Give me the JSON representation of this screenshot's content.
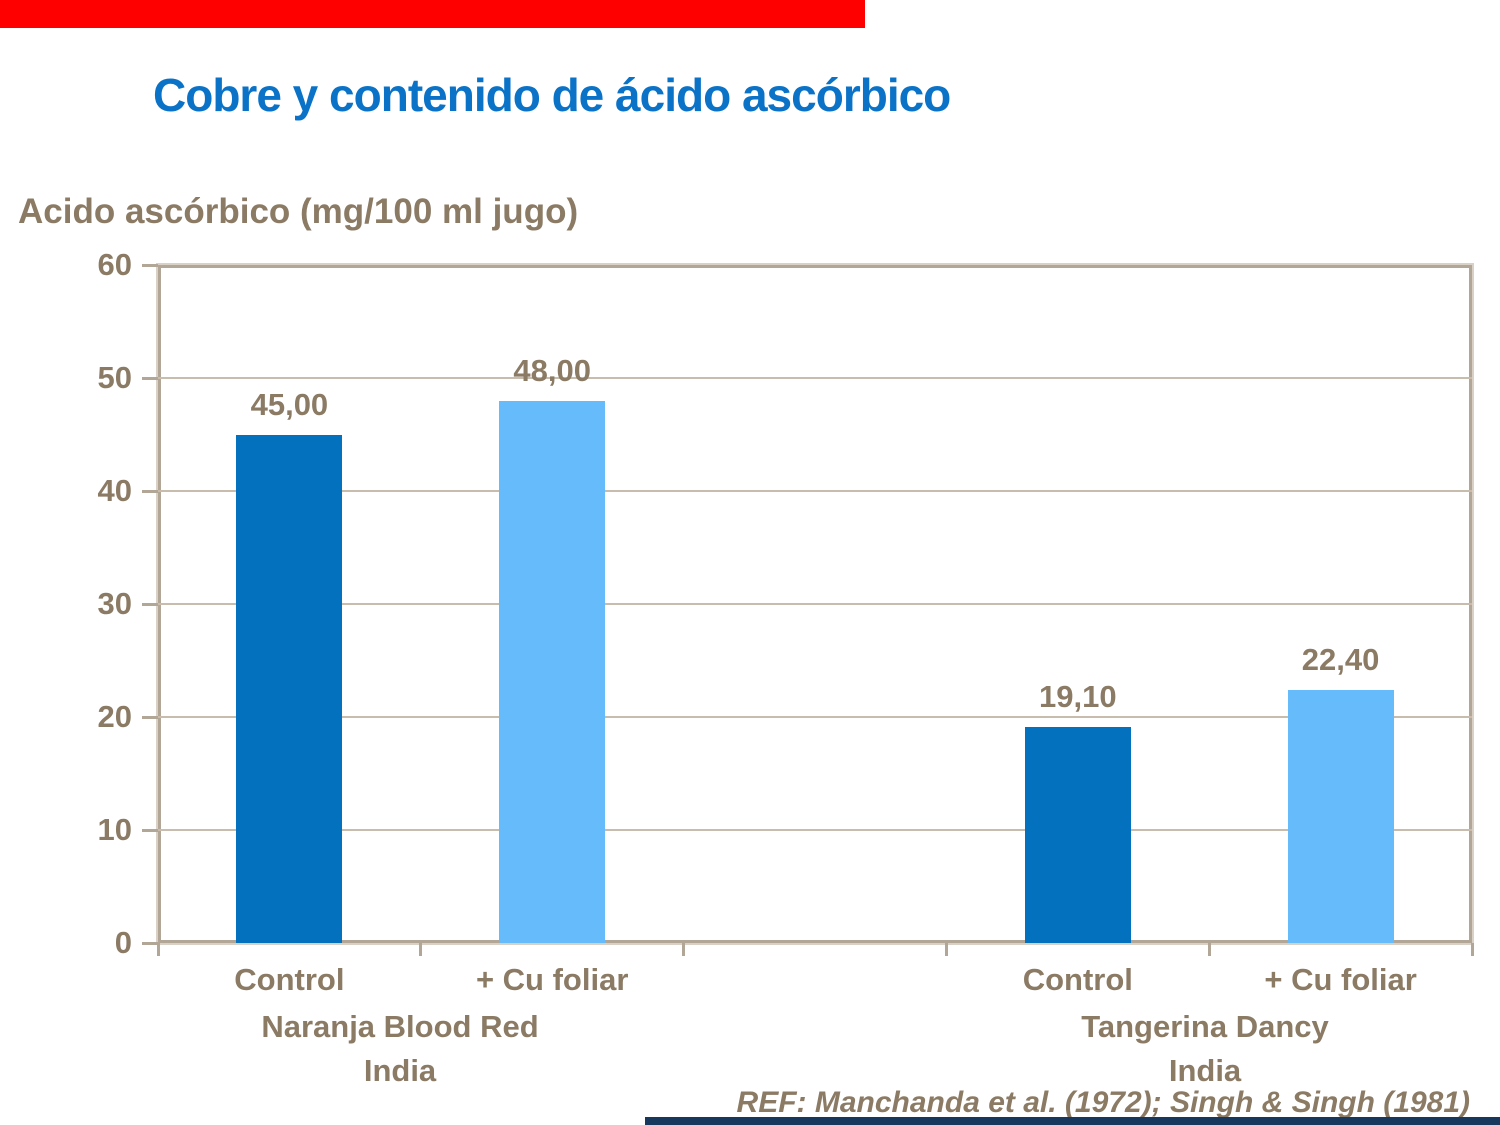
{
  "slide": {
    "title": "Cobre y contenido de ácido ascórbico",
    "reference": "REF: Manchanda et al. (1972); Singh & Singh (1981)"
  },
  "colors": {
    "title_blue": "#0B73C7",
    "text_brown": "#8B7A64",
    "dark_blue_bar": "#0471BE",
    "light_blue_bar": "#66BBFB",
    "gridline_tan": "#C8BCAD",
    "frame_tan": "#B2A697",
    "frame_highlight": "#D9D1C5",
    "top_accent_red": "#FE0000",
    "bottom_accent_navy": "#17375D"
  },
  "chart_data": {
    "type": "bar",
    "title": "Cobre y contenido de ácido ascórbico",
    "ylabel": "Acido ascórbico (mg/100 ml jugo)",
    "xlabel": "",
    "ylim": [
      0,
      60
    ],
    "yticks": [
      0,
      10,
      20,
      30,
      40,
      50,
      60
    ],
    "grid": true,
    "legend_position": "none",
    "categories": [
      "Control",
      "+ Cu foliar",
      "",
      "Control",
      "+ Cu foliar"
    ],
    "values": [
      45.0,
      48.0,
      null,
      19.1,
      22.4
    ],
    "value_labels": [
      "45,00",
      "48,00",
      "",
      "19,10",
      "22,40"
    ],
    "bar_color_keys": [
      "dark_blue_bar",
      "light_blue_bar",
      null,
      "dark_blue_bar",
      "light_blue_bar"
    ],
    "groups": [
      {
        "line1": "Naranja Blood Red",
        "line2": "India"
      },
      {
        "line1": "Tangerina Dancy",
        "line2": "India"
      }
    ],
    "reference": "REF: Manchanda et al. (1972); Singh & Singh (1981)"
  }
}
